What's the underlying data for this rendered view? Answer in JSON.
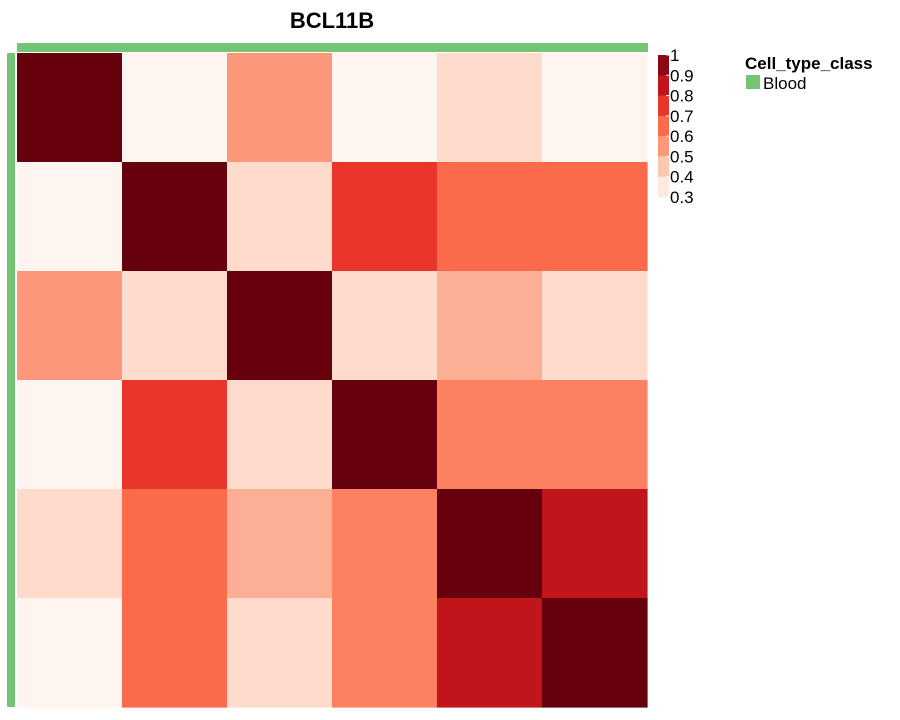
{
  "chart_data": {
    "type": "heatmap",
    "title": "BCL11B",
    "rows": 6,
    "cols": 6,
    "values": [
      [
        1.0,
        0.3,
        0.55,
        0.3,
        0.4,
        0.3
      ],
      [
        0.3,
        1.0,
        0.4,
        0.75,
        0.65,
        0.65
      ],
      [
        0.55,
        0.4,
        1.0,
        0.4,
        0.5,
        0.4
      ],
      [
        0.3,
        0.75,
        0.4,
        1.0,
        0.6,
        0.6
      ],
      [
        0.4,
        0.65,
        0.5,
        0.6,
        1.0,
        0.85
      ],
      [
        0.3,
        0.65,
        0.4,
        0.6,
        0.85,
        1.0
      ]
    ],
    "colorbar": {
      "ticks": [
        "1",
        "0.9",
        "0.8",
        "0.7",
        "0.6",
        "0.5",
        "0.4",
        "0.3"
      ],
      "range": [
        0.3,
        1.0
      ],
      "colors": [
        "#fff5f0",
        "#fee0d2",
        "#fcbba1",
        "#fc9272",
        "#fb6a4a",
        "#ef3b2c",
        "#cb181d",
        "#a50f15",
        "#67000d"
      ]
    },
    "annotation": {
      "title": "Cell_type_class",
      "label": "Blood",
      "color": "#74c476"
    }
  }
}
